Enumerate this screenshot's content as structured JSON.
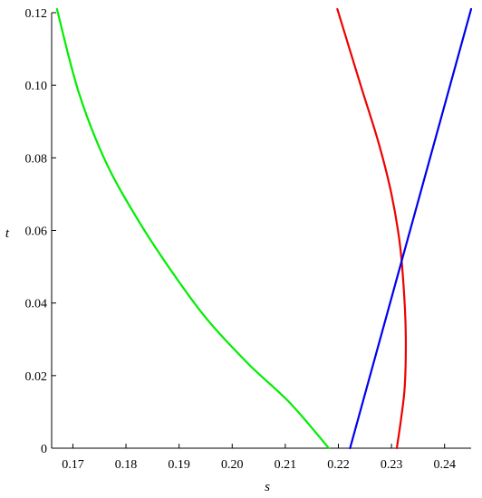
{
  "chart_data": {
    "type": "line",
    "title": "",
    "xlabel": "s",
    "ylabel": "t",
    "xlim": [
      0.166,
      0.245
    ],
    "ylim": [
      0,
      0.12
    ],
    "grid": false,
    "legend": "none",
    "x_ticks": [
      "0.17",
      "0.18",
      "0.19",
      "0.20",
      "0.21",
      "0.22",
      "0.23",
      "0.24"
    ],
    "y_ticks": [
      "0",
      "0.02",
      "0.04",
      "0.06",
      "0.08",
      "0.10",
      "0.12"
    ],
    "series": [
      {
        "color": "#00ee00",
        "x": [
          0.2182,
          0.211,
          0.203,
          0.195,
          0.188,
          0.1818,
          0.176,
          0.171,
          0.167
        ],
        "y": [
          0,
          0.0123,
          0.0233,
          0.036,
          0.05,
          0.064,
          0.0795,
          0.0985,
          0.121
        ]
      },
      {
        "color": "#ee0000",
        "x": [
          0.231,
          0.2318,
          0.2325,
          0.2327,
          0.2324,
          0.2316,
          0.23,
          0.2276,
          0.2242,
          0.2198
        ],
        "y": [
          0,
          0.008,
          0.017,
          0.03,
          0.042,
          0.056,
          0.07,
          0.084,
          0.1,
          0.121
        ]
      },
      {
        "color": "#0000ee",
        "x": [
          0.2222,
          0.245
        ],
        "y": [
          0,
          0.121
        ]
      }
    ]
  }
}
